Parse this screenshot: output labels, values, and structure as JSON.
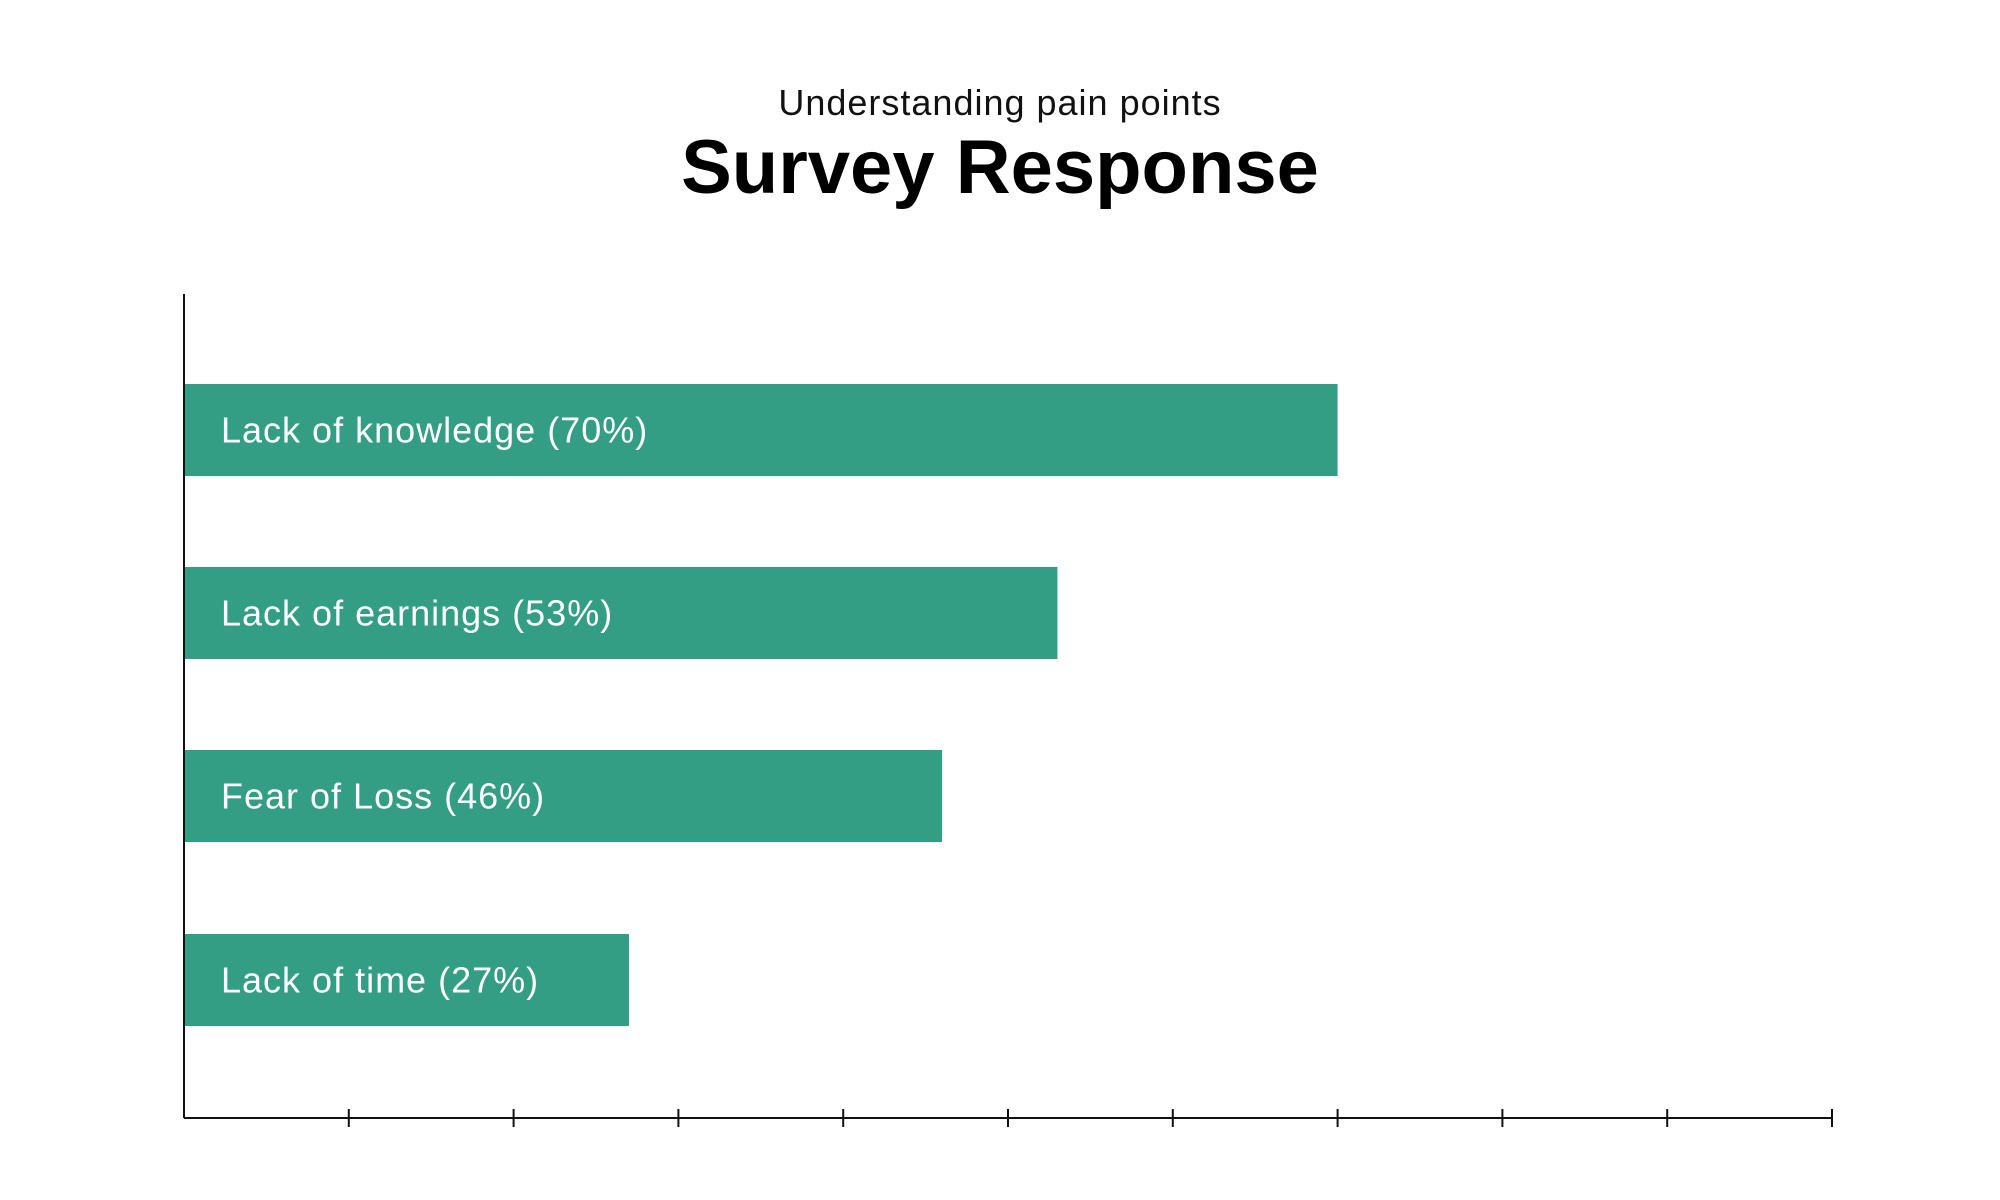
{
  "subtitle": "Understanding pain points",
  "title": "Survey Response",
  "colors": {
    "bar": "#339e84",
    "axis": "#111111",
    "label": "#ffffff"
  },
  "chart_data": {
    "type": "bar",
    "orientation": "horizontal",
    "categories": [
      "Lack of knowledge (70%)",
      "Lack of earnings (53%)",
      "Fear of Loss (46%)",
      "Lack of time (27%)"
    ],
    "values": [
      70,
      53,
      46,
      27
    ],
    "xlim": [
      0,
      100
    ],
    "x_tick_step": 10,
    "grid": false,
    "legend": "none"
  }
}
